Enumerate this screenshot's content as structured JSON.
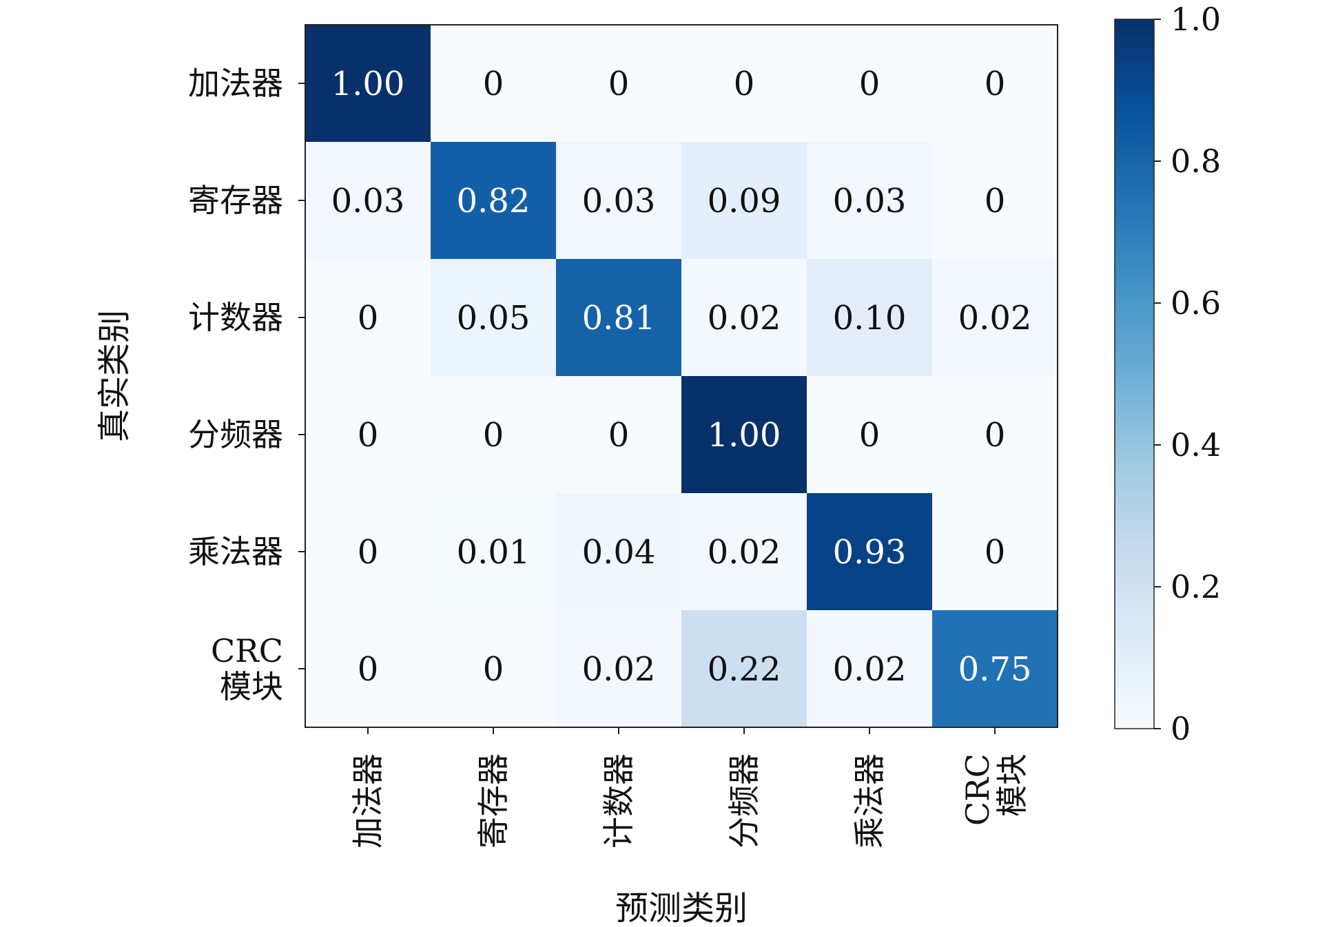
{
  "chart_data": {
    "type": "heatmap",
    "xlabel": "预测类别",
    "ylabel": "真实类别",
    "x_categories": [
      [
        "加法器"
      ],
      [
        "寄存器"
      ],
      [
        "计数器"
      ],
      [
        "分频器"
      ],
      [
        "乘法器"
      ],
      [
        "CRC",
        "模块"
      ]
    ],
    "y_categories": [
      [
        "加法器"
      ],
      [
        "寄存器"
      ],
      [
        "计数器"
      ],
      [
        "分频器"
      ],
      [
        "乘法器"
      ],
      [
        "CRC",
        "模块"
      ]
    ],
    "values": [
      [
        1.0,
        0,
        0,
        0,
        0,
        0
      ],
      [
        0.03,
        0.82,
        0.03,
        0.09,
        0.03,
        0
      ],
      [
        0,
        0.05,
        0.81,
        0.02,
        0.1,
        0.02
      ],
      [
        0,
        0,
        0,
        1.0,
        0,
        0
      ],
      [
        0,
        0.01,
        0.04,
        0.02,
        0.93,
        0
      ],
      [
        0,
        0,
        0.02,
        0.22,
        0.02,
        0.75
      ]
    ],
    "cell_labels": [
      [
        "1.00",
        "0",
        "0",
        "0",
        "0",
        "0"
      ],
      [
        "0.03",
        "0.82",
        "0.03",
        "0.09",
        "0.03",
        "0"
      ],
      [
        "0",
        "0.05",
        "0.81",
        "0.02",
        "0.10",
        "0.02"
      ],
      [
        "0",
        "0",
        "0",
        "1.00",
        "0",
        "0"
      ],
      [
        "0",
        "0.01",
        "0.04",
        "0.02",
        "0.93",
        "0"
      ],
      [
        "0",
        "0",
        "0.02",
        "0.22",
        "0.02",
        "0.75"
      ]
    ],
    "colorbar": {
      "range": [
        0,
        1
      ],
      "ticks": [
        0,
        0.2,
        0.4,
        0.6,
        0.8,
        1.0
      ],
      "tick_labels": [
        "0",
        "0.2",
        "0.4",
        "0.6",
        "0.8",
        "1.0"
      ]
    },
    "colormap": {
      "name": "Blues",
      "stops": [
        "#f7fbff",
        "#deebf7",
        "#c6dbef",
        "#9ecae1",
        "#6baed6",
        "#4292c6",
        "#2171b5",
        "#08519c",
        "#08306b"
      ]
    },
    "grid": false
  }
}
